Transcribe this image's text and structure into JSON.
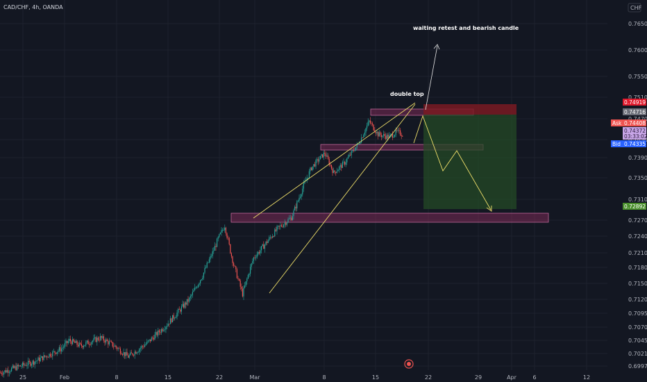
{
  "symbol": "CAD/CHF, 4h, OANDA",
  "currency": "CHF",
  "colors": {
    "background": "#131722",
    "grid": "#1e222d",
    "candle_up": "#26a69a",
    "candle_down": "#ef5350",
    "channel": "#f0e06a",
    "zone_fill": "#7a2a55",
    "zone_border": "#c0689a",
    "target_fill": "#244a26",
    "stop_fill": "#7a1a22"
  },
  "chart_data": {
    "type": "candlestick",
    "y_ticks": [
      "0.76500",
      "0.76000",
      "0.75500",
      "0.75100",
      "0.74700",
      "0.74300",
      "0.73900",
      "0.73500",
      "0.73100",
      "0.72700",
      "0.72400",
      "0.72100",
      "0.71800",
      "0.71500",
      "0.71200",
      "0.70950",
      "0.70700",
      "0.70450",
      "0.70210",
      "0.69970"
    ],
    "x_ticks": [
      "25",
      "Feb",
      "8",
      "15",
      "22",
      "Mar",
      "8",
      "15",
      "22",
      "29",
      "Apr",
      "6",
      "12"
    ],
    "ylim": [
      0.6985,
      0.7675
    ],
    "price_tags": [
      {
        "label": "",
        "value": "0.74919",
        "color": "#e0182b"
      },
      {
        "label": "",
        "value": "0.74716",
        "color": "#6b6e78"
      },
      {
        "label": "Ask",
        "value": "0.74408",
        "color": "#ef5350"
      },
      {
        "label": "",
        "value": "0.74372\n03:33:02",
        "color": "#c8a6e8"
      },
      {
        "label": "Bid",
        "value": "0.74335",
        "color": "#2962ff"
      },
      {
        "label": "",
        "value": "0.72892",
        "color": "#4a8f2c"
      }
    ],
    "annotations": {
      "double_top": "double top",
      "waiting": "waiting retest and bearish candle"
    },
    "waypoints": [
      {
        "t": 0,
        "p": 0.6985
      },
      {
        "t": 30,
        "p": 0.7005
      },
      {
        "t": 55,
        "p": 0.703
      },
      {
        "t": 62,
        "p": 0.7045
      },
      {
        "t": 72,
        "p": 0.7035
      },
      {
        "t": 90,
        "p": 0.705
      },
      {
        "t": 104,
        "p": 0.7033
      },
      {
        "t": 115,
        "p": 0.7015
      },
      {
        "t": 132,
        "p": 0.704
      },
      {
        "t": 150,
        "p": 0.7075
      },
      {
        "t": 170,
        "p": 0.712
      },
      {
        "t": 182,
        "p": 0.7165
      },
      {
        "t": 196,
        "p": 0.7235
      },
      {
        "t": 202,
        "p": 0.726
      },
      {
        "t": 210,
        "p": 0.7185
      },
      {
        "t": 218,
        "p": 0.713
      },
      {
        "t": 228,
        "p": 0.72
      },
      {
        "t": 250,
        "p": 0.7255
      },
      {
        "t": 262,
        "p": 0.7275
      },
      {
        "t": 272,
        "p": 0.733
      },
      {
        "t": 280,
        "p": 0.737
      },
      {
        "t": 292,
        "p": 0.74
      },
      {
        "t": 300,
        "p": 0.736
      },
      {
        "t": 310,
        "p": 0.738
      },
      {
        "t": 322,
        "p": 0.742
      },
      {
        "t": 332,
        "p": 0.7465
      },
      {
        "t": 340,
        "p": 0.744
      },
      {
        "t": 350,
        "p": 0.7435
      },
      {
        "t": 357,
        "p": 0.7445
      },
      {
        "t": 362,
        "p": 0.744
      }
    ]
  }
}
